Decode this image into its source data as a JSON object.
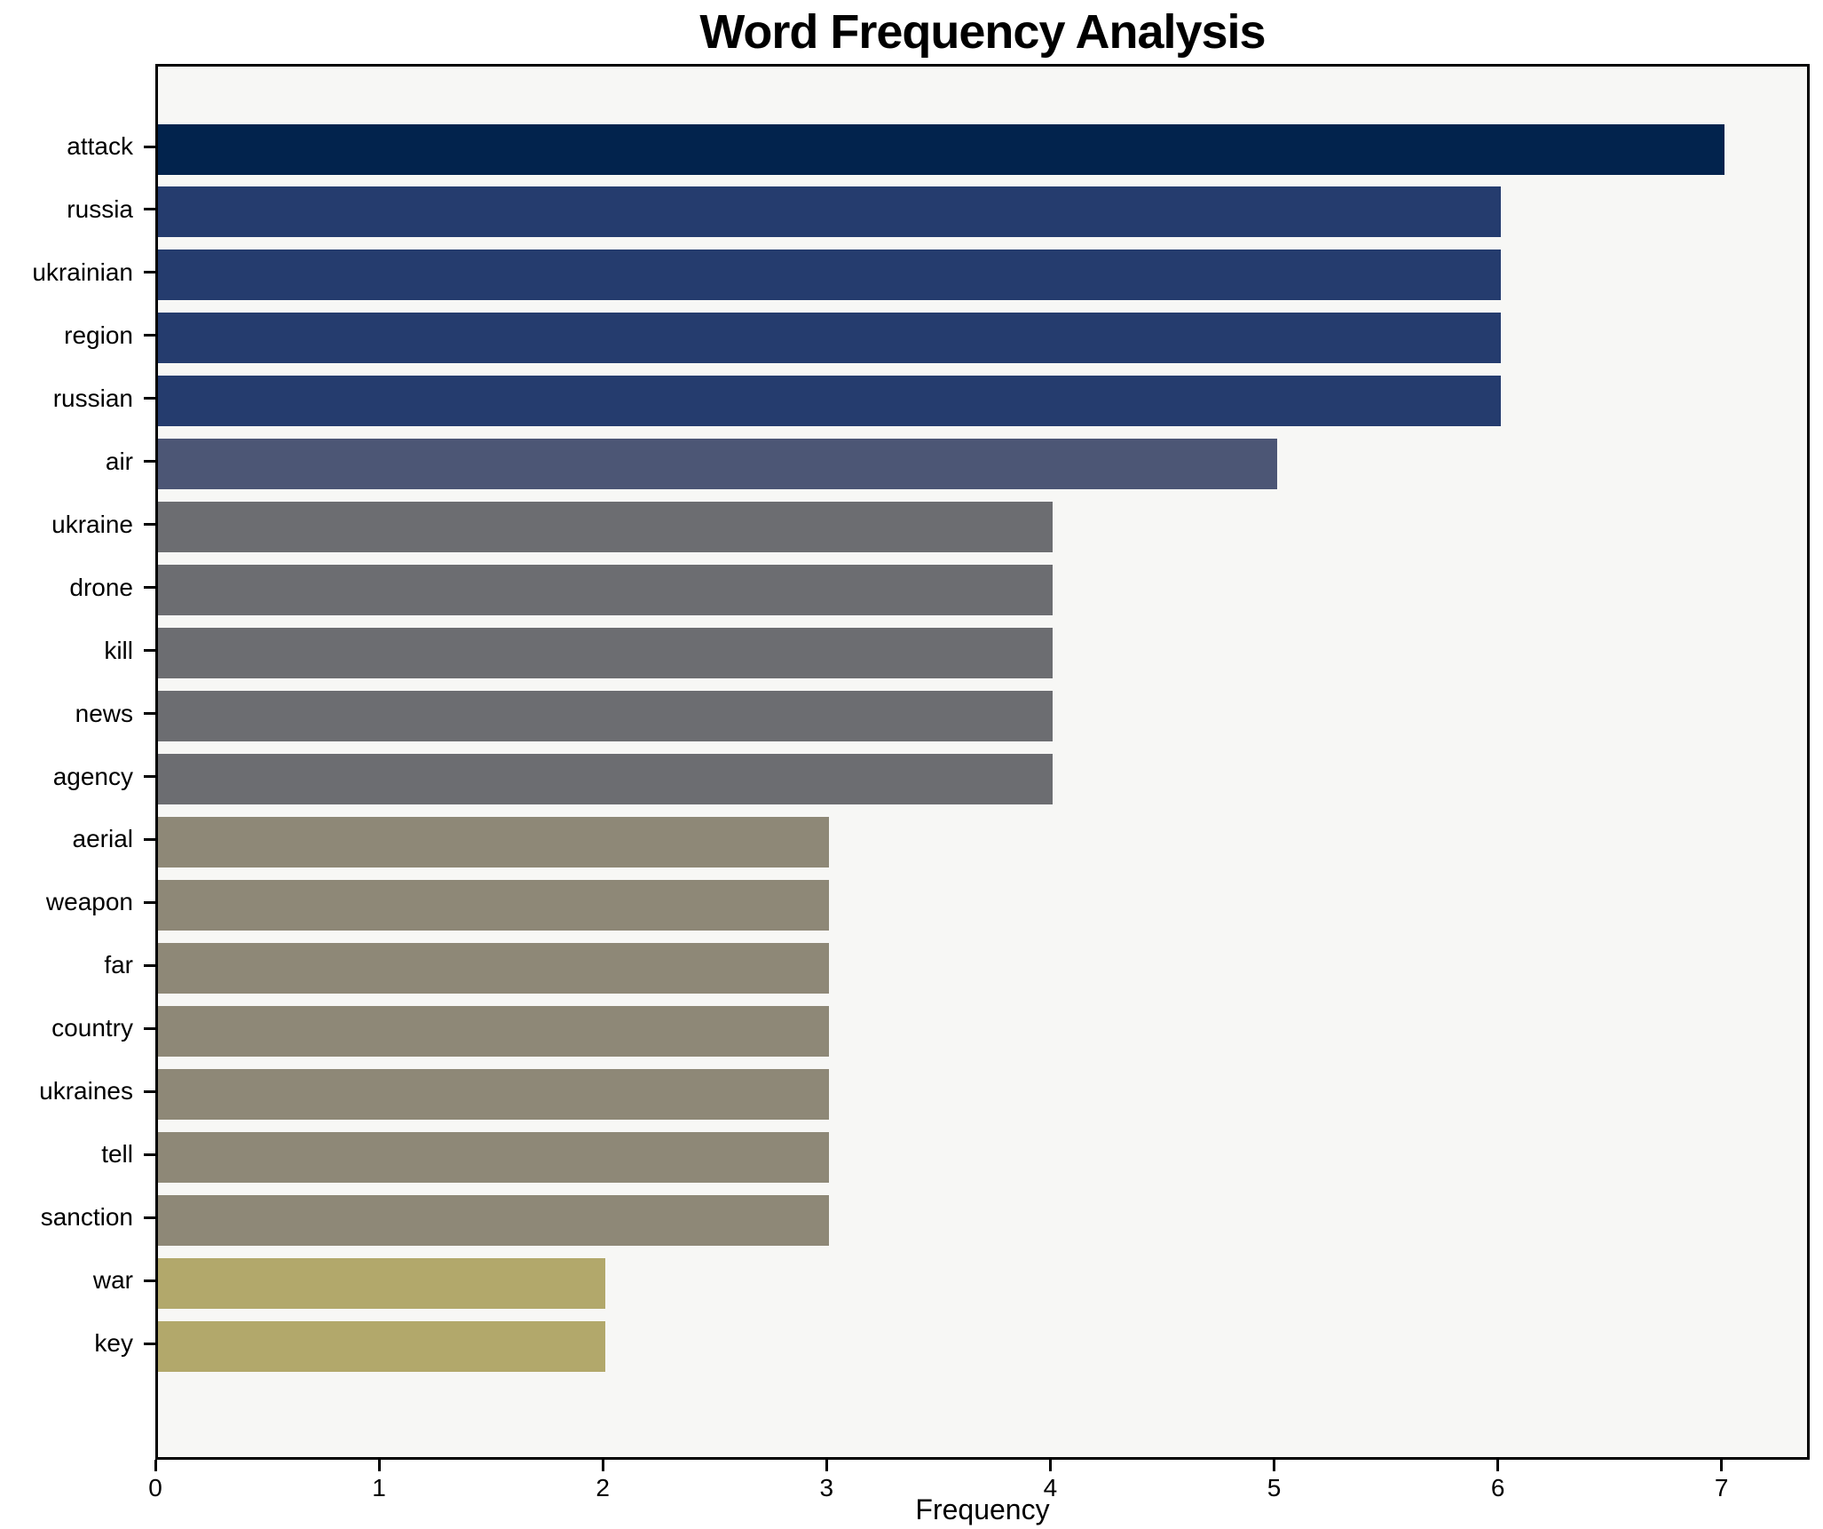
{
  "title": "Word Frequency Analysis",
  "axis": {
    "xlabel": "Frequency"
  },
  "chart_data": {
    "type": "bar",
    "orientation": "horizontal",
    "title": "Word Frequency Analysis",
    "xlabel": "Frequency",
    "ylabel": "",
    "categories": [
      "attack",
      "russia",
      "ukrainian",
      "region",
      "russian",
      "air",
      "ukraine",
      "drone",
      "kill",
      "news",
      "agency",
      "aerial",
      "weapon",
      "far",
      "country",
      "ukraines",
      "tell",
      "sanction",
      "war",
      "key"
    ],
    "values": [
      7,
      6,
      6,
      6,
      6,
      5,
      4,
      4,
      4,
      4,
      4,
      3,
      3,
      3,
      3,
      3,
      3,
      3,
      2,
      2
    ],
    "bar_colors": [
      "#02234d",
      "#253c6e",
      "#253c6e",
      "#253c6e",
      "#253c6e",
      "#4c5675",
      "#6c6d71",
      "#6c6d71",
      "#6c6d71",
      "#6c6d71",
      "#6c6d71",
      "#8e8877",
      "#8e8877",
      "#8e8877",
      "#8e8877",
      "#8e8877",
      "#8e8877",
      "#8e8877",
      "#b2a86b",
      "#b2a86b"
    ],
    "xticks": [
      0,
      1,
      2,
      3,
      4,
      5,
      6,
      7
    ],
    "xlim": [
      0,
      7.37
    ],
    "grid": false,
    "legend": false,
    "plot_background": "#f7f7f5",
    "figure_background": "#ffffff",
    "spine_color": "#000000"
  }
}
